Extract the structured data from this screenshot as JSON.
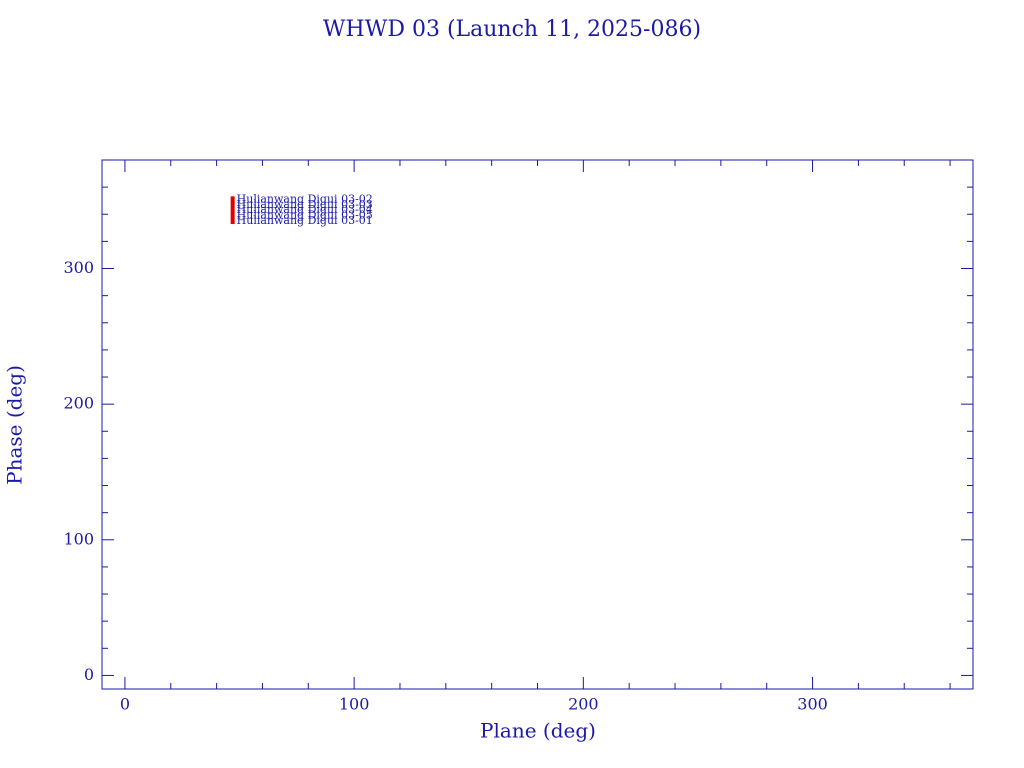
{
  "chart_data": {
    "type": "scatter",
    "title": "WHWD 03 (Launch 11, 2025-086)",
    "xlabel": "Plane (deg)",
    "ylabel": "Phase (deg)",
    "xlim": [
      -10,
      370
    ],
    "ylim": [
      -10,
      380
    ],
    "xticks": [
      0,
      100,
      200,
      300
    ],
    "yticks": [
      0,
      100,
      200,
      300
    ],
    "xminorticks": [
      20,
      40,
      60,
      80,
      120,
      140,
      160,
      180,
      220,
      240,
      260,
      280,
      320,
      340,
      360
    ],
    "yminorticks": [
      20,
      40,
      60,
      80,
      120,
      140,
      160,
      180,
      220,
      240,
      260,
      280,
      320,
      340,
      360
    ],
    "color": "#e00000",
    "label_color": "#1a1aa6",
    "points": [
      {
        "label": "Hulianwang Digui 03-02",
        "x": 47,
        "y": 351
      },
      {
        "label": "Hulianwang Digui 03-03",
        "x": 47,
        "y": 347
      },
      {
        "label": "Hulianwang Digui 03-04",
        "x": 47,
        "y": 343
      },
      {
        "label": "Hulianwang Digui 03-05",
        "x": 47,
        "y": 339
      },
      {
        "label": "Hulianwang Digui 03-01",
        "x": 47,
        "y": 335
      }
    ]
  }
}
